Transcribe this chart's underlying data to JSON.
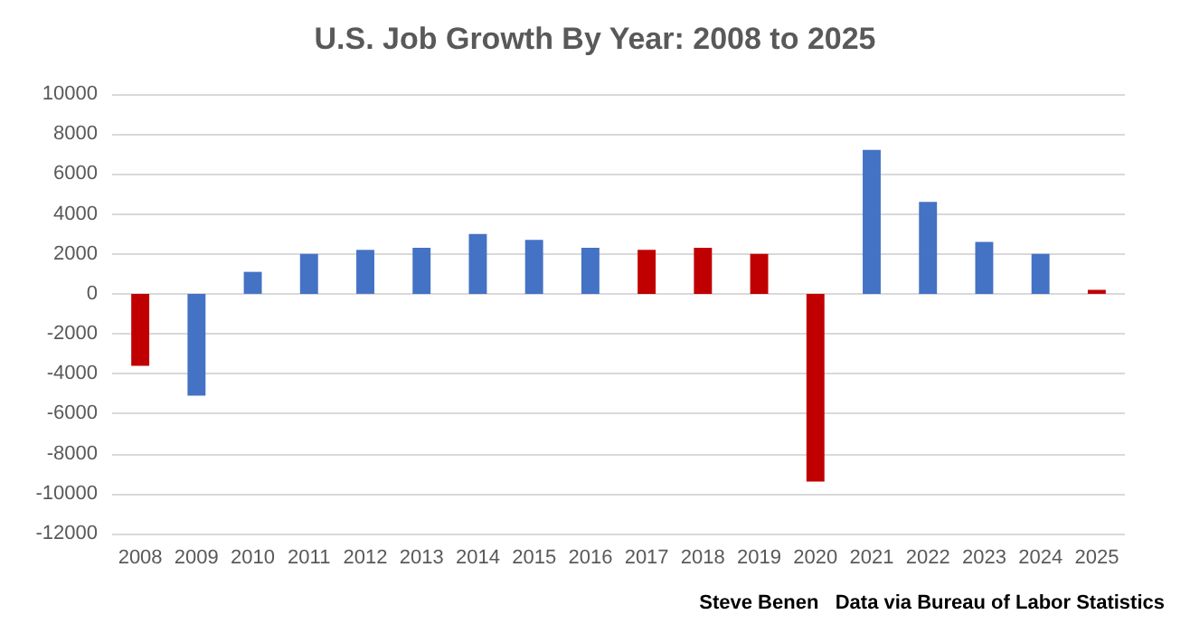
{
  "chart_data": {
    "type": "bar",
    "title": "U.S. Job Growth By Year: 2008 to 2025",
    "categories": [
      "2008",
      "2009",
      "2010",
      "2011",
      "2012",
      "2013",
      "2014",
      "2015",
      "2016",
      "2017",
      "2018",
      "2019",
      "2020",
      "2021",
      "2022",
      "2023",
      "2024",
      "2025"
    ],
    "values": [
      -3600,
      -5100,
      1100,
      2000,
      2200,
      2300,
      3000,
      2700,
      2300,
      2200,
      2300,
      2000,
      -9400,
      7200,
      4600,
      2600,
      2000,
      200
    ],
    "colors": [
      "#c00000",
      "#4472c4",
      "#4472c4",
      "#4472c4",
      "#4472c4",
      "#4472c4",
      "#4472c4",
      "#4472c4",
      "#4472c4",
      "#c00000",
      "#c00000",
      "#c00000",
      "#c00000",
      "#4472c4",
      "#4472c4",
      "#4472c4",
      "#4472c4",
      "#c00000"
    ],
    "ylim": [
      -12000,
      10000
    ],
    "yticks": [
      -12000,
      -10000,
      -8000,
      -6000,
      -4000,
      -2000,
      0,
      2000,
      4000,
      6000,
      8000,
      10000
    ],
    "grid": "y",
    "annotations": [
      "Steve Benen",
      "Data via Bureau of Labor Statistics"
    ]
  }
}
